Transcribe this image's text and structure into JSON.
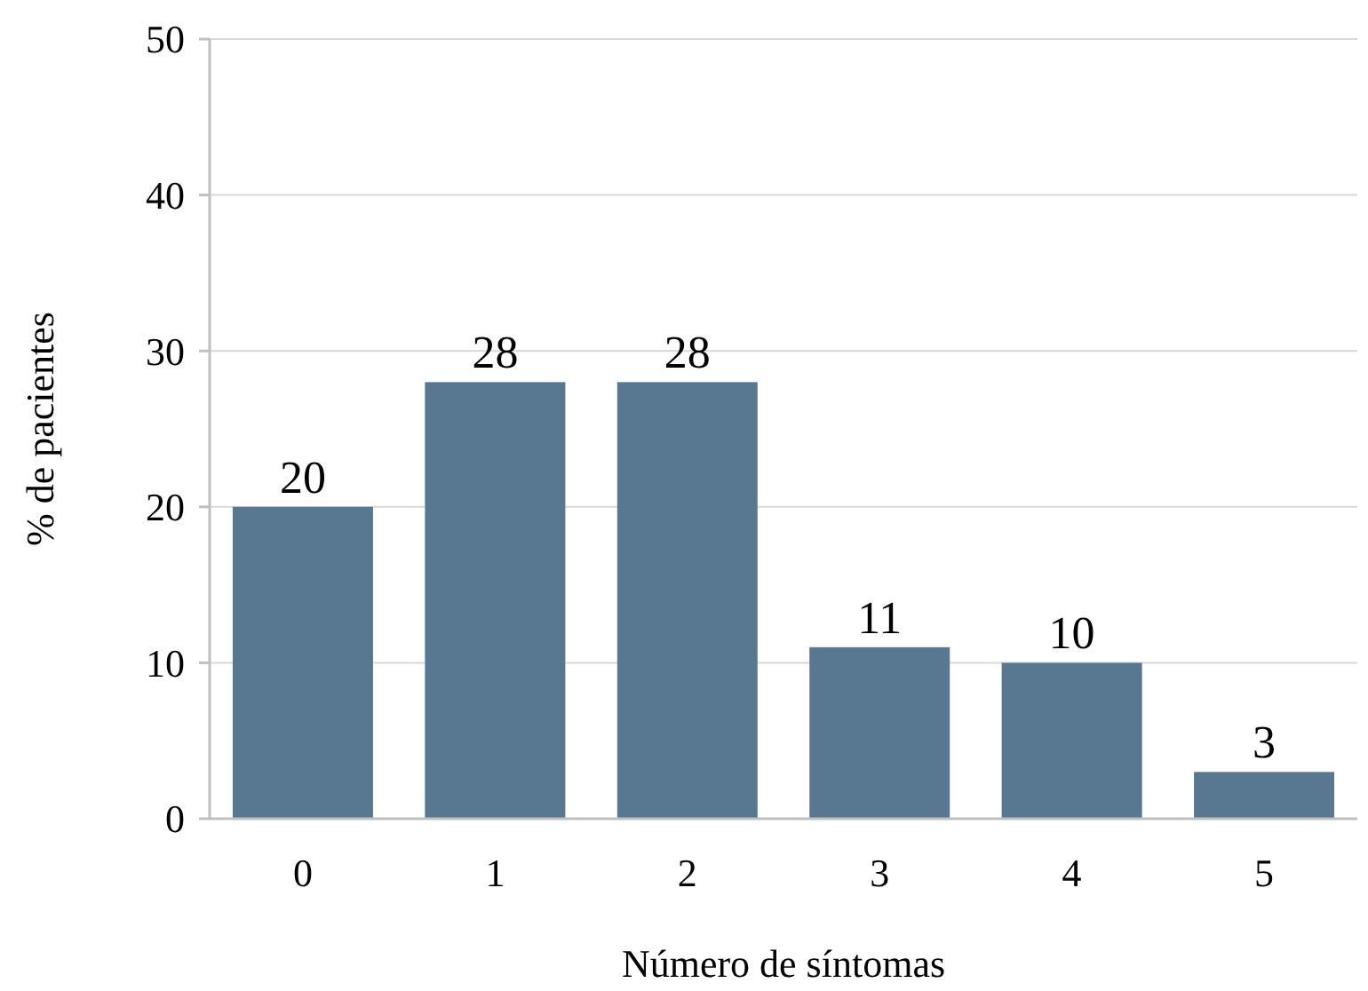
{
  "chart_data": {
    "type": "bar",
    "xlabel": "Número de síntomas",
    "ylabel": "% de pacientes",
    "categories": [
      "0",
      "1",
      "2",
      "3",
      "4",
      "5"
    ],
    "values": [
      20,
      28,
      28,
      11,
      10,
      3
    ],
    "color": "#587891",
    "ylim": [
      0,
      50
    ],
    "yticks": [
      0,
      10,
      20,
      30,
      40,
      50
    ],
    "grid": "y",
    "data_labels": true
  }
}
